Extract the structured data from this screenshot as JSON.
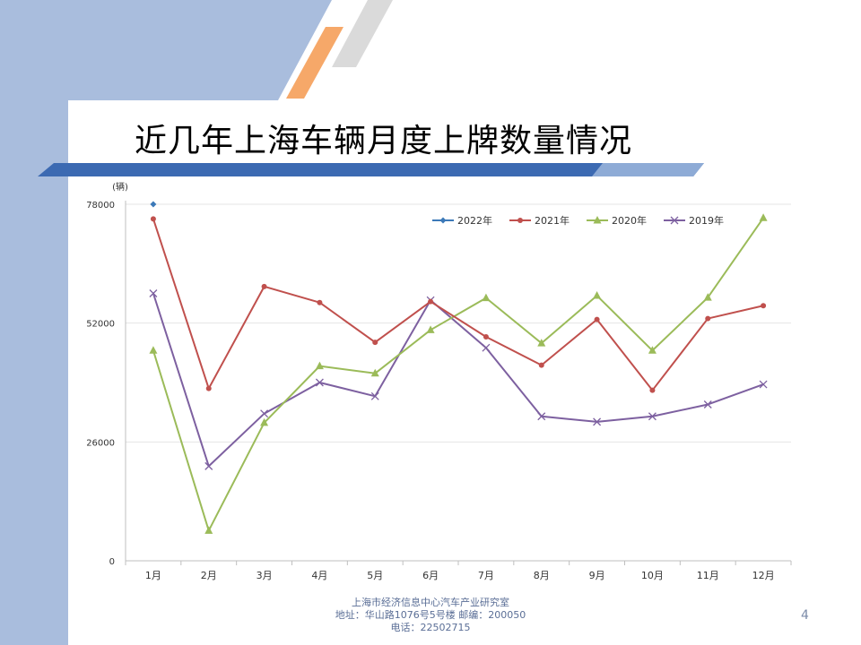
{
  "slide": {
    "title": "近几年上海车辆月度上牌数量情况",
    "footer_line1": "上海市经济信息中心汽车产业研究室",
    "footer_line2": "地址：华山路1076号5号楼   邮编：200050",
    "footer_line3": "电话：22502715",
    "page_number": "4"
  },
  "chart_data": {
    "type": "line",
    "unit_label": "(辆)",
    "categories": [
      "1月",
      "2月",
      "3月",
      "4月",
      "5月",
      "6月",
      "7月",
      "8月",
      "9月",
      "10月",
      "11月",
      "12月"
    ],
    "ylim": [
      0,
      78000
    ],
    "yticks": [
      0,
      26000,
      52000,
      78000
    ],
    "grid": true,
    "legend_position": "top-right",
    "series": [
      {
        "name": "2022年",
        "color": "#3c79b8",
        "marker": "diamond",
        "values": [
          78000,
          null,
          null,
          null,
          null,
          null,
          null,
          null,
          null,
          null,
          null,
          null
        ]
      },
      {
        "name": "2021年",
        "color": "#c0504d",
        "marker": "circle",
        "values": [
          74800,
          37700,
          60000,
          56500,
          47800,
          56700,
          49000,
          42800,
          52800,
          37300,
          53000,
          55800
        ]
      },
      {
        "name": "2020年",
        "color": "#9bbb59",
        "marker": "triangle",
        "values": [
          46000,
          6600,
          30200,
          42600,
          41000,
          50500,
          57500,
          47600,
          58000,
          46000,
          57600,
          75000
        ]
      },
      {
        "name": "2019年",
        "color": "#7d60a0",
        "marker": "x",
        "values": [
          58500,
          20700,
          32200,
          39000,
          36000,
          57000,
          46600,
          31600,
          30400,
          31600,
          34200,
          38600
        ]
      }
    ]
  }
}
